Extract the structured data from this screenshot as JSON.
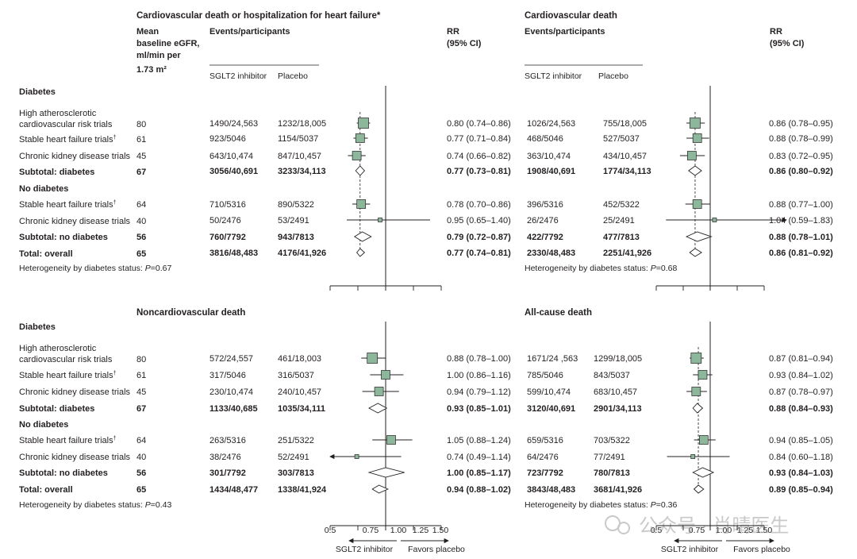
{
  "colors": {
    "marker": "#8db79a",
    "ink": "#231f20"
  },
  "headers": {
    "egfr": [
      "Mean",
      "baseline eGFR,",
      "ml/min per"
    ],
    "egfr_unit": "1.73 m²",
    "events": "Events/participants",
    "sglt2": "SGLT2 inhibitor",
    "placebo": "Placebo",
    "rr": "RR",
    "ci": "(95% CI)"
  },
  "row_labels": {
    "diabetes": "Diabetes",
    "no_diabetes": "No diabetes",
    "high_athero_1": "High atherosclerotic",
    "high_athero_2": "cardiovascular risk trials",
    "stable_hf": "Stable heart failure trials",
    "ckd": "Chronic kidney disease trials",
    "subtotal_diabetes": "Subtotal: diabetes",
    "subtotal_no_diabetes": "Subtotal: no diabetes",
    "total": "Total: overall",
    "dagger": "†"
  },
  "egfr": {
    "top": [
      "80",
      "61",
      "45",
      "67",
      "64",
      "40",
      "56",
      "65"
    ],
    "bottom": [
      "80",
      "61",
      "45",
      "67",
      "64",
      "40",
      "56",
      "65"
    ]
  },
  "axis": {
    "ticks": [
      "0.5",
      "0.75",
      "1.00",
      "1.25",
      "1.50"
    ],
    "favors_left": "SGLT2 inhibitor",
    "favors_right": "Favors placebo"
  },
  "watermark": "公众号 · 肖晴医生",
  "chart_data": [
    {
      "type": "forest",
      "title": "Cardiovascular death or hospitalization for heart failure*",
      "xlim": [
        0.5,
        1.5
      ],
      "reference": 1.0,
      "pooled": 0.77,
      "rows": [
        {
          "name": "High atherosclerotic cardiovascular risk trials",
          "sglt2": "1490/24,563",
          "placebo": "1232/18,005",
          "rr_text": "0.80 (0.74–0.86)",
          "rr": 0.8,
          "lo": 0.74,
          "hi": 0.86,
          "kind": "study"
        },
        {
          "name": "Stable heart failure trials",
          "sglt2": "923/5046",
          "placebo": "1154/5037",
          "rr_text": "0.77 (0.71–0.84)",
          "rr": 0.77,
          "lo": 0.71,
          "hi": 0.84,
          "kind": "study"
        },
        {
          "name": "Chronic kidney disease trials",
          "sglt2": "643/10,474",
          "placebo": "847/10,457",
          "rr_text": "0.74 (0.66–0.82)",
          "rr": 0.74,
          "lo": 0.66,
          "hi": 0.82,
          "kind": "study"
        },
        {
          "name": "Subtotal: diabetes",
          "sglt2": "3056/40,691",
          "placebo": "3233/34,113",
          "rr_text": "0.77 (0.73–0.81)",
          "rr": 0.77,
          "lo": 0.73,
          "hi": 0.81,
          "kind": "subtotal"
        },
        {
          "name": "Stable heart failure trials",
          "sglt2": "710/5316",
          "placebo": "890/5322",
          "rr_text": "0.78 (0.70–0.86)",
          "rr": 0.78,
          "lo": 0.7,
          "hi": 0.86,
          "kind": "study"
        },
        {
          "name": "Chronic kidney disease trials",
          "sglt2": "50/2476",
          "placebo": "53/2491",
          "rr_text": "0.95 (0.65–1.40)",
          "rr": 0.95,
          "lo": 0.65,
          "hi": 1.4,
          "kind": "small"
        },
        {
          "name": "Subtotal: no diabetes",
          "sglt2": "760/7792",
          "placebo": "943/7813",
          "rr_text": "0.79 (0.72–0.87)",
          "rr": 0.79,
          "lo": 0.72,
          "hi": 0.87,
          "kind": "subtotal"
        },
        {
          "name": "Total: overall",
          "sglt2": "3816/48,483",
          "placebo": "4176/41,926",
          "rr_text": "0.77 (0.74–0.81)",
          "rr": 0.77,
          "lo": 0.74,
          "hi": 0.81,
          "kind": "total"
        }
      ],
      "heterogeneity": "Heterogeneity by diabetes status: ",
      "p_label": "P",
      "p_value": "=0.67"
    },
    {
      "type": "forest",
      "title": "Cardiovascular death",
      "xlim": [
        0.5,
        1.5
      ],
      "reference": 1.0,
      "pooled": 0.86,
      "rows": [
        {
          "sglt2": "1026/24,563",
          "placebo": "755/18,005",
          "rr_text": "0.86 (0.78–0.95)",
          "rr": 0.86,
          "lo": 0.78,
          "hi": 0.95,
          "kind": "study"
        },
        {
          "sglt2": "468/5046",
          "placebo": "527/5037",
          "rr_text": "0.88 (0.78–0.99)",
          "rr": 0.88,
          "lo": 0.78,
          "hi": 0.99,
          "kind": "study"
        },
        {
          "sglt2": "363/10,474",
          "placebo": "434/10,457",
          "rr_text": "0.83 (0.72–0.95)",
          "rr": 0.83,
          "lo": 0.72,
          "hi": 0.95,
          "kind": "study"
        },
        {
          "sglt2": "1908/40,691",
          "placebo": "1774/34,113",
          "rr_text": "0.86 (0.80–0.92)",
          "rr": 0.86,
          "lo": 0.8,
          "hi": 0.92,
          "kind": "subtotal"
        },
        {
          "sglt2": "396/5316",
          "placebo": "452/5322",
          "rr_text": "0.88 (0.77–1.00)",
          "rr": 0.88,
          "lo": 0.77,
          "hi": 1.0,
          "kind": "study"
        },
        {
          "sglt2": "26/2476",
          "placebo": "25/2491",
          "rr_text": "1.04 (0.59–1.83)",
          "rr": 1.04,
          "lo": 0.59,
          "hi": 1.83,
          "kind": "small"
        },
        {
          "sglt2": "422/7792",
          "placebo": "477/7813",
          "rr_text": "0.88 (0.78–1.01)",
          "rr": 0.88,
          "lo": 0.78,
          "hi": 1.01,
          "kind": "subtotal"
        },
        {
          "sglt2": "2330/48,483",
          "placebo": "2251/41,926",
          "rr_text": "0.86 (0.81–0.92)",
          "rr": 0.86,
          "lo": 0.81,
          "hi": 0.92,
          "kind": "total"
        }
      ],
      "heterogeneity": "Heterogeneity by diabetes status: ",
      "p_label": "P",
      "p_value": "=0.68"
    },
    {
      "type": "forest",
      "title": "Noncardiovascular death",
      "xlim": [
        0.5,
        1.5
      ],
      "reference": 1.0,
      "pooled": null,
      "rows": [
        {
          "sglt2": "572/24,557",
          "placebo": "461/18,003",
          "rr_text": "0.88 (0.78–1.00)",
          "rr": 0.88,
          "lo": 0.78,
          "hi": 1.0,
          "kind": "study"
        },
        {
          "sglt2": "317/5046",
          "placebo": "316/5037",
          "rr_text": "1.00 (0.86–1.16)",
          "rr": 1.0,
          "lo": 0.86,
          "hi": 1.16,
          "kind": "study"
        },
        {
          "sglt2": "230/10,474",
          "placebo": "240/10,457",
          "rr_text": "0.94 (0.79–1.12)",
          "rr": 0.94,
          "lo": 0.79,
          "hi": 1.12,
          "kind": "study"
        },
        {
          "sglt2": "1133/40,685",
          "placebo": "1035/34,111",
          "rr_text": "0.93 (0.85–1.01)",
          "rr": 0.93,
          "lo": 0.85,
          "hi": 1.01,
          "kind": "subtotal"
        },
        {
          "sglt2": "263/5316",
          "placebo": "251/5322",
          "rr_text": "1.05 (0.88–1.24)",
          "rr": 1.05,
          "lo": 0.88,
          "hi": 1.24,
          "kind": "study"
        },
        {
          "sglt2": "38/2476",
          "placebo": "52/2491",
          "rr_text": "0.74 (0.49–1.14)",
          "rr": 0.74,
          "lo": 0.49,
          "hi": 1.14,
          "kind": "small"
        },
        {
          "sglt2": "301/7792",
          "placebo": "303/7813",
          "rr_text": "1.00 (0.85–1.17)",
          "rr": 1.0,
          "lo": 0.85,
          "hi": 1.17,
          "kind": "subtotal"
        },
        {
          "sglt2": "1434/48,477",
          "placebo": "1338/41,924",
          "rr_text": "0.94 (0.88–1.02)",
          "rr": 0.94,
          "lo": 0.88,
          "hi": 1.02,
          "kind": "total"
        }
      ],
      "heterogeneity": "Heterogeneity by diabetes status: ",
      "p_label": "P",
      "p_value": "=0.43"
    },
    {
      "type": "forest",
      "title": "All-cause death",
      "xlim": [
        0.5,
        1.5
      ],
      "reference": 1.0,
      "pooled": 0.89,
      "rows": [
        {
          "sglt2": "1671/24 ,563",
          "placebo": "1299/18,005",
          "rr_text": "0.87 (0.81–0.94)",
          "rr": 0.87,
          "lo": 0.81,
          "hi": 0.94,
          "kind": "study"
        },
        {
          "sglt2": "785/5046",
          "placebo": "843/5037",
          "rr_text": "0.93 (0.84–1.02)",
          "rr": 0.93,
          "lo": 0.84,
          "hi": 1.02,
          "kind": "study"
        },
        {
          "sglt2": "599/10,474",
          "placebo": "683/10,457",
          "rr_text": "0.87 (0.78–0.97)",
          "rr": 0.87,
          "lo": 0.78,
          "hi": 0.97,
          "kind": "study"
        },
        {
          "sglt2": "3120/40,691",
          "placebo": "2901/34,113",
          "rr_text": "0.88 (0.84–0.93)",
          "rr": 0.88,
          "lo": 0.84,
          "hi": 0.93,
          "kind": "subtotal"
        },
        {
          "sglt2": "659/5316",
          "placebo": "703/5322",
          "rr_text": "0.94 (0.85–1.05)",
          "rr": 0.94,
          "lo": 0.85,
          "hi": 1.05,
          "kind": "study"
        },
        {
          "sglt2": "64/2476",
          "placebo": "77/2491",
          "rr_text": "0.84 (0.60–1.18)",
          "rr": 0.84,
          "lo": 0.6,
          "hi": 1.18,
          "kind": "small"
        },
        {
          "sglt2": "723/7792",
          "placebo": "780/7813",
          "rr_text": "0.93 (0.84–1.03)",
          "rr": 0.93,
          "lo": 0.84,
          "hi": 1.03,
          "kind": "subtotal"
        },
        {
          "sglt2": "3843/48,483",
          "placebo": "3681/41,926",
          "rr_text": "0.89 (0.85–0.94)",
          "rr": 0.89,
          "lo": 0.85,
          "hi": 0.94,
          "kind": "total"
        }
      ],
      "heterogeneity": "Heterogeneity by diabetes status: ",
      "p_label": "P",
      "p_value": "=0.36"
    }
  ]
}
